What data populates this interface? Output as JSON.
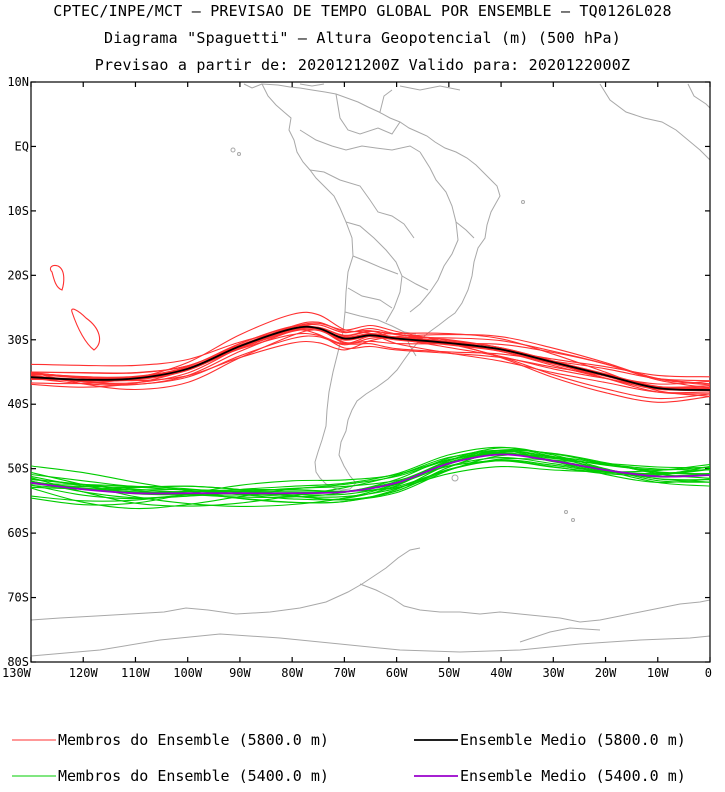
{
  "header": {
    "line1": "CPTEC/INPE/MCT — PREVISAO DE TEMPO GLOBAL POR ENSEMBLE — TQ0126L028",
    "line2": "Diagrama \"Spaguetti\" — Altura Geopotencial (m) (500 hPa)",
    "line3": "Previsao a partir de: 2020121200Z  Valido para: 2020122000Z"
  },
  "axes": {
    "lon_range": [
      -130,
      0
    ],
    "lat_range": [
      -80,
      10
    ],
    "lat_ticks": [
      {
        "lat": 10,
        "label": "10N"
      },
      {
        "lat": 0,
        "label": "EQ"
      },
      {
        "lat": -10,
        "label": "10S"
      },
      {
        "lat": -20,
        "label": "20S"
      },
      {
        "lat": -30,
        "label": "30S"
      },
      {
        "lat": -40,
        "label": "40S"
      },
      {
        "lat": -50,
        "label": "50S"
      },
      {
        "lat": -60,
        "label": "60S"
      },
      {
        "lat": -70,
        "label": "70S"
      },
      {
        "lat": -80,
        "label": "80S"
      }
    ],
    "lon_ticks": [
      {
        "lon": -130,
        "label": "130W"
      },
      {
        "lon": -120,
        "label": "120W"
      },
      {
        "lon": -110,
        "label": "110W"
      },
      {
        "lon": -100,
        "label": "100W"
      },
      {
        "lon": -90,
        "label": "90W"
      },
      {
        "lon": -80,
        "label": "80W"
      },
      {
        "lon": -70,
        "label": "70W"
      },
      {
        "lon": -60,
        "label": "60W"
      },
      {
        "lon": -50,
        "label": "50W"
      },
      {
        "lon": -40,
        "label": "40W"
      },
      {
        "lon": -30,
        "label": "30W"
      },
      {
        "lon": -20,
        "label": "20W"
      },
      {
        "lon": -10,
        "label": "10W"
      },
      {
        "lon": 0,
        "label": "0"
      }
    ]
  },
  "colors": {
    "members_5800": "#ff3030",
    "mean_5800": "#000000",
    "members_5400": "#00cc00",
    "mean_5400": "#9900cc",
    "coast": "#a8a8a8"
  },
  "legend": [
    {
      "label": "Membros do Ensemble (5800.0 m)",
      "color": "#ff3030"
    },
    {
      "label": "Ensemble Medio (5800.0 m)",
      "color": "#000000"
    },
    {
      "label": "Membros do Ensemble (5400.0 m)",
      "color": "#00cc00"
    },
    {
      "label": "Ensemble Medio (5400.0 m)",
      "color": "#9900cc"
    }
  ],
  "contours": {
    "mean_5800": [
      [
        -130,
        -35.8
      ],
      [
        -120,
        -36.2
      ],
      [
        -110,
        -36.0
      ],
      [
        -100,
        -34.5
      ],
      [
        -90,
        -31.0
      ],
      [
        -80,
        -28.3
      ],
      [
        -75,
        -28.2
      ],
      [
        -70,
        -29.8
      ],
      [
        -65,
        -29.3
      ],
      [
        -60,
        -29.8
      ],
      [
        -50,
        -30.5
      ],
      [
        -40,
        -31.5
      ],
      [
        -30,
        -33.5
      ],
      [
        -20,
        -35.5
      ],
      [
        -10,
        -37.5
      ],
      [
        0,
        -37.8
      ]
    ],
    "mean_5400": [
      [
        -130,
        -52.2
      ],
      [
        -120,
        -53.2
      ],
      [
        -110,
        -53.8
      ],
      [
        -100,
        -53.8
      ],
      [
        -90,
        -53.8
      ],
      [
        -80,
        -53.8
      ],
      [
        -70,
        -53.6
      ],
      [
        -60,
        -52.2
      ],
      [
        -50,
        -49.2
      ],
      [
        -40,
        -47.8
      ],
      [
        -30,
        -48.8
      ],
      [
        -20,
        -50.2
      ],
      [
        -10,
        -51.2
      ],
      [
        0,
        -51.0
      ]
    ]
  }
}
